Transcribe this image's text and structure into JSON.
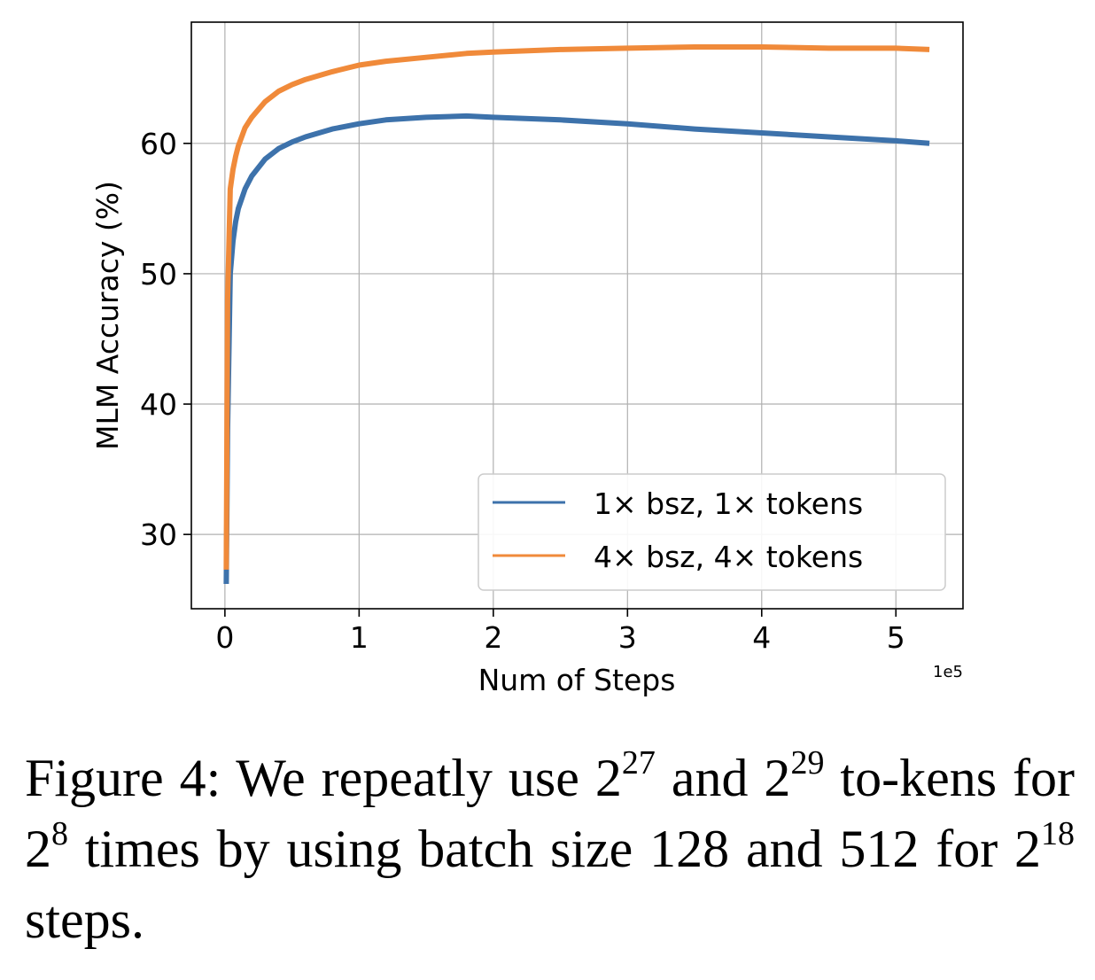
{
  "chart_data": {
    "type": "line",
    "xlabel": "Num of Steps",
    "ylabel": "MLM Accuracy (%)",
    "x_offset_label": "1e5",
    "xlim": [
      -0.25,
      5.5
    ],
    "ylim": [
      24.3,
      69.3
    ],
    "xticks": [
      0,
      1,
      2,
      3,
      4,
      5
    ],
    "xtick_labels": [
      "0",
      "1",
      "2",
      "3",
      "4",
      "5"
    ],
    "yticks": [
      30,
      40,
      50,
      60
    ],
    "ytick_labels": [
      "30",
      "40",
      "50",
      "60"
    ],
    "grid": true,
    "legend_position": "lower-right",
    "series": [
      {
        "name": "1× bsz, 1× tokens",
        "color": "#3d72ab",
        "x": [
          0.01,
          0.02,
          0.04,
          0.06,
          0.08,
          0.1,
          0.15,
          0.2,
          0.3,
          0.4,
          0.5,
          0.6,
          0.8,
          1.0,
          1.2,
          1.5,
          1.8,
          2.0,
          2.5,
          3.0,
          3.5,
          4.0,
          4.5,
          5.0,
          5.25
        ],
        "y": [
          26.2,
          38.0,
          50.0,
          52.5,
          54.0,
          55.0,
          56.5,
          57.5,
          58.8,
          59.6,
          60.1,
          60.5,
          61.1,
          61.5,
          61.8,
          62.0,
          62.1,
          62.0,
          61.8,
          61.5,
          61.1,
          60.8,
          60.5,
          60.2,
          60.0
        ]
      },
      {
        "name": "4× bsz, 4× tokens",
        "color": "#f08a3a",
        "x": [
          0.01,
          0.02,
          0.04,
          0.06,
          0.08,
          0.1,
          0.15,
          0.2,
          0.3,
          0.4,
          0.5,
          0.6,
          0.8,
          1.0,
          1.2,
          1.5,
          1.8,
          2.0,
          2.5,
          3.0,
          3.5,
          4.0,
          4.5,
          5.0,
          5.25
        ],
        "y": [
          27.3,
          48.0,
          56.5,
          58.0,
          59.0,
          59.8,
          61.2,
          62.0,
          63.2,
          64.0,
          64.5,
          64.9,
          65.5,
          66.0,
          66.3,
          66.6,
          66.9,
          67.0,
          67.2,
          67.3,
          67.4,
          67.4,
          67.3,
          67.3,
          67.2
        ]
      }
    ]
  },
  "caption": {
    "prefix": "Figure 4:  We repeatly use 2",
    "sup1": "27",
    "mid1": " and 2",
    "sup2": "29",
    "mid2": " to-kens for 2",
    "sup3": "8",
    "mid3": " times by using batch size 128 and 512 for 2",
    "sup4": "18",
    "suffix": " steps."
  }
}
